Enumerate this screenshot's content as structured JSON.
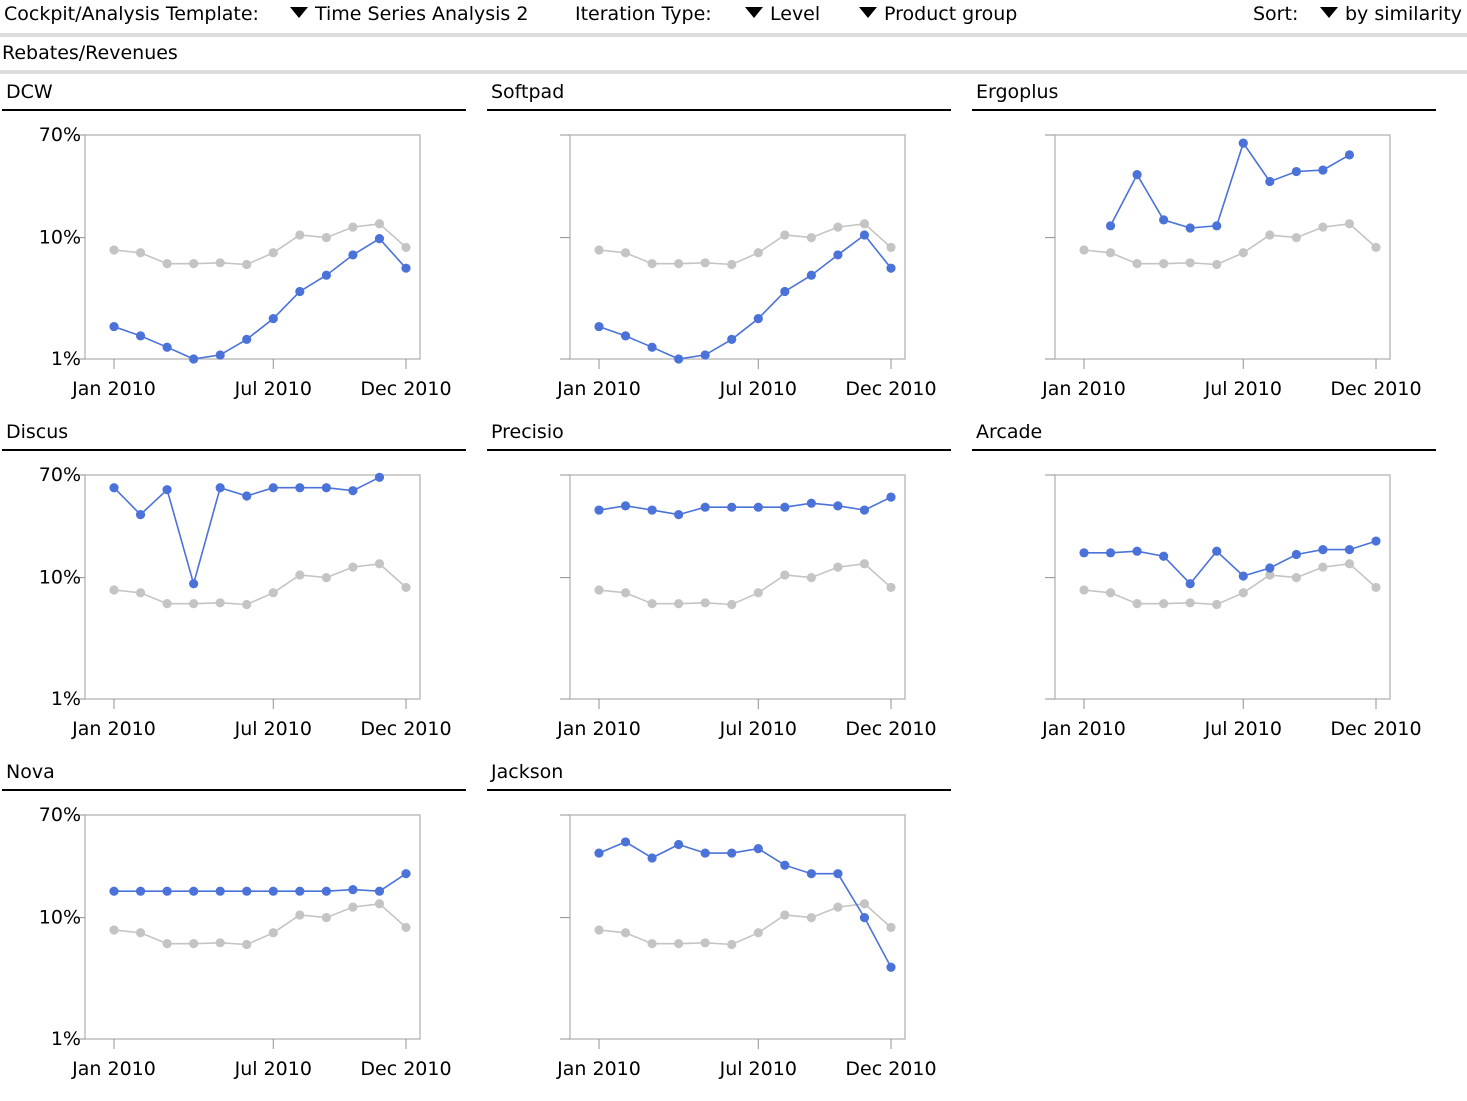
{
  "toolbar": {
    "template_label": "Cockpit/Analysis Template:",
    "template_value": "Time Series Analysis 2",
    "iteration_label": "Iteration Type:",
    "iteration_value": "Level",
    "group_value": "Product group",
    "sort_label": "Sort:",
    "sort_value": "by similarity"
  },
  "section_title": "Rebates/Revenues",
  "colors": {
    "series": "#4a72d8",
    "reference": "#c4c4c4",
    "frame": "#bdbdbd"
  },
  "chart_data": [
    {
      "type": "line",
      "title": "DCW",
      "x": [
        "Jan 2010",
        "Feb 2010",
        "Mar 2010",
        "Apr 2010",
        "May 2010",
        "Jun 2010",
        "Jul 2010",
        "Aug 2010",
        "Sep 2010",
        "Oct 2010",
        "Nov 2010",
        "Dec 2010"
      ],
      "xticks": [
        "Jan 2010",
        "Jul 2010",
        "Dec 2010"
      ],
      "yticks": [
        "70%",
        "10%",
        "1%"
      ],
      "yscale": "log",
      "ylim": [
        0.01,
        0.7
      ],
      "series": [
        {
          "values": [
            0.0185,
            0.0155,
            0.0125,
            0.01,
            0.0108,
            0.0145,
            0.0215,
            0.036,
            0.049,
            0.072,
            0.098,
            0.056
          ]
        },
        {
          "values": [
            0.079,
            0.075,
            0.061,
            0.061,
            0.062,
            0.06,
            0.075,
            0.105,
            0.1,
            0.122,
            0.13,
            0.083
          ]
        }
      ]
    },
    {
      "type": "line",
      "title": "Softpad",
      "x": [
        "Jan 2010",
        "Feb 2010",
        "Mar 2010",
        "Apr 2010",
        "May 2010",
        "Jun 2010",
        "Jul 2010",
        "Aug 2010",
        "Sep 2010",
        "Oct 2010",
        "Nov 2010",
        "Dec 2010"
      ],
      "xticks": [
        "Jan 2010",
        "Jul 2010",
        "Dec 2010"
      ],
      "yticks": [],
      "yscale": "log",
      "ylim": [
        0.01,
        0.7
      ],
      "series": [
        {
          "values": [
            0.0185,
            0.0155,
            0.0125,
            0.01,
            0.0108,
            0.0145,
            0.0215,
            0.036,
            0.049,
            0.072,
            0.105,
            0.056
          ]
        },
        {
          "values": [
            0.079,
            0.075,
            0.061,
            0.061,
            0.062,
            0.06,
            0.075,
            0.105,
            0.1,
            0.122,
            0.13,
            0.083
          ]
        }
      ]
    },
    {
      "type": "line",
      "title": "Ergoplus",
      "x": [
        "Jan 2010",
        "Feb 2010",
        "Mar 2010",
        "Apr 2010",
        "May 2010",
        "Jun 2010",
        "Jul 2010",
        "Aug 2010",
        "Sep 2010",
        "Oct 2010",
        "Nov 2010",
        "Dec 2010"
      ],
      "xticks": [
        "Jan 2010",
        "Jul 2010",
        "Dec 2010"
      ],
      "yticks": [],
      "yscale": "log",
      "ylim": [
        0.01,
        0.7
      ],
      "series": [
        {
          "values": [
            null,
            0.125,
            0.33,
            0.14,
            0.12,
            0.125,
            0.6,
            0.29,
            0.35,
            0.36,
            0.48,
            null
          ]
        },
        {
          "values": [
            0.079,
            0.075,
            0.061,
            0.061,
            0.062,
            0.06,
            0.075,
            0.105,
            0.1,
            0.122,
            0.13,
            0.083
          ]
        }
      ]
    },
    {
      "type": "line",
      "title": "Discus",
      "x": [
        "Jan 2010",
        "Feb 2010",
        "Mar 2010",
        "Apr 2010",
        "May 2010",
        "Jun 2010",
        "Jul 2010",
        "Aug 2010",
        "Sep 2010",
        "Oct 2010",
        "Nov 2010",
        "Dec 2010"
      ],
      "xticks": [
        "Jan 2010",
        "Jul 2010",
        "Dec 2010"
      ],
      "yticks": [
        "70%",
        "10%",
        "1%"
      ],
      "yscale": "log",
      "ylim": [
        0.01,
        0.7
      ],
      "series": [
        {
          "values": [
            0.55,
            0.33,
            0.53,
            0.089,
            0.55,
            0.47,
            0.55,
            0.55,
            0.55,
            0.52,
            0.67,
            null
          ]
        },
        {
          "values": [
            0.079,
            0.075,
            0.061,
            0.061,
            0.062,
            0.06,
            0.075,
            0.105,
            0.1,
            0.122,
            0.13,
            0.083
          ]
        }
      ]
    },
    {
      "type": "line",
      "title": "Precisio",
      "x": [
        "Jan 2010",
        "Feb 2010",
        "Mar 2010",
        "Apr 2010",
        "May 2010",
        "Jun 2010",
        "Jul 2010",
        "Aug 2010",
        "Sep 2010",
        "Oct 2010",
        "Nov 2010",
        "Dec 2010"
      ],
      "xticks": [
        "Jan 2010",
        "Jul 2010",
        "Dec 2010"
      ],
      "yticks": [],
      "yscale": "log",
      "ylim": [
        0.01,
        0.7
      ],
      "series": [
        {
          "values": [
            0.36,
            0.39,
            0.36,
            0.33,
            0.38,
            0.38,
            0.38,
            0.38,
            0.41,
            0.39,
            0.36,
            0.46
          ]
        },
        {
          "values": [
            0.079,
            0.075,
            0.061,
            0.061,
            0.062,
            0.06,
            0.075,
            0.105,
            0.1,
            0.122,
            0.13,
            0.083
          ]
        }
      ]
    },
    {
      "type": "line",
      "title": "Arcade",
      "x": [
        "Jan 2010",
        "Feb 2010",
        "Mar 2010",
        "Apr 2010",
        "May 2010",
        "Jun 2010",
        "Jul 2010",
        "Aug 2010",
        "Sep 2010",
        "Oct 2010",
        "Nov 2010",
        "Dec 2010"
      ],
      "xticks": [
        "Jan 2010",
        "Jul 2010",
        "Dec 2010"
      ],
      "yticks": [],
      "yscale": "log",
      "ylim": [
        0.01,
        0.7
      ],
      "series": [
        {
          "values": [
            0.16,
            0.16,
            0.165,
            0.15,
            0.089,
            0.165,
            0.103,
            0.12,
            0.155,
            0.17,
            0.17,
            0.2
          ]
        },
        {
          "values": [
            0.079,
            0.075,
            0.061,
            0.061,
            0.062,
            0.06,
            0.075,
            0.105,
            0.1,
            0.122,
            0.13,
            0.083
          ]
        }
      ]
    },
    {
      "type": "line",
      "title": "Nova",
      "x": [
        "Jan 2010",
        "Feb 2010",
        "Mar 2010",
        "Apr 2010",
        "May 2010",
        "Jun 2010",
        "Jul 2010",
        "Aug 2010",
        "Sep 2010",
        "Oct 2010",
        "Nov 2010",
        "Dec 2010"
      ],
      "xticks": [
        "Jan 2010",
        "Jul 2010",
        "Dec 2010"
      ],
      "yticks": [
        "70%",
        "10%",
        "1%"
      ],
      "yscale": "log",
      "ylim": [
        0.01,
        0.7
      ],
      "series": [
        {
          "values": [
            0.165,
            0.165,
            0.165,
            0.165,
            0.165,
            0.165,
            0.165,
            0.165,
            0.165,
            0.17,
            0.165,
            0.23
          ]
        },
        {
          "values": [
            0.079,
            0.075,
            0.061,
            0.061,
            0.062,
            0.06,
            0.075,
            0.105,
            0.1,
            0.122,
            0.13,
            0.083
          ]
        }
      ]
    },
    {
      "type": "line",
      "title": "Jackson",
      "x": [
        "Jan 2010",
        "Feb 2010",
        "Mar 2010",
        "Apr 2010",
        "May 2010",
        "Jun 2010",
        "Jul 2010",
        "Aug 2010",
        "Sep 2010",
        "Oct 2010",
        "Nov 2010",
        "Dec 2010"
      ],
      "xticks": [
        "Jan 2010",
        "Jul 2010",
        "Dec 2010"
      ],
      "yticks": [],
      "yscale": "log",
      "ylim": [
        0.01,
        0.7
      ],
      "series": [
        {
          "values": [
            0.34,
            0.42,
            0.31,
            0.4,
            0.34,
            0.34,
            0.37,
            0.27,
            0.23,
            0.23,
            0.1,
            0.039
          ]
        },
        {
          "values": [
            0.079,
            0.075,
            0.061,
            0.061,
            0.062,
            0.06,
            0.075,
            0.105,
            0.1,
            0.122,
            0.13,
            0.083
          ]
        }
      ]
    }
  ]
}
